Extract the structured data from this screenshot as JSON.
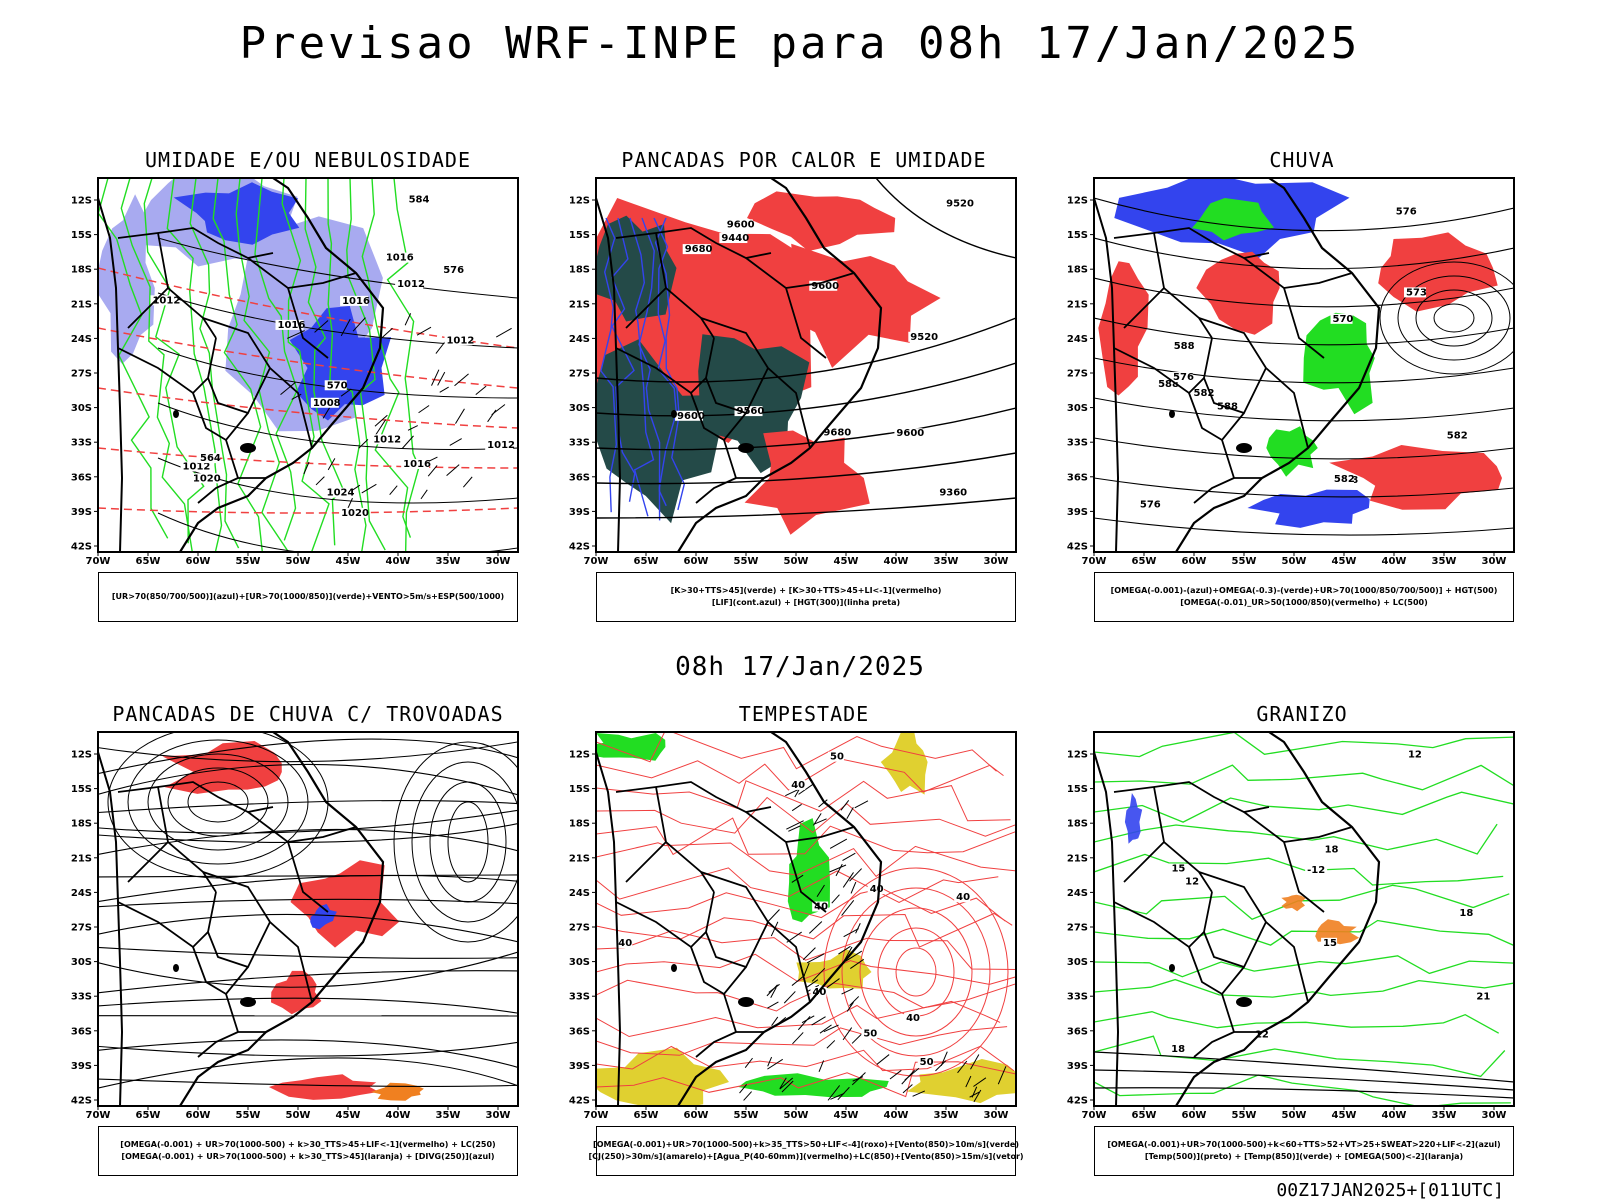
{
  "title": "Previsao WRF-INPE  para 08h 17/Jan/2025",
  "mid_time": "08h 17/Jan/2025",
  "footer": "00Z17JAN2025+[011UTC]",
  "axes": {
    "lat_labels": [
      "12S",
      "15S",
      "18S",
      "21S",
      "24S",
      "27S",
      "30S",
      "33S",
      "36S",
      "39S",
      "42S"
    ],
    "lon_labels": [
      "70W",
      "65W",
      "60W",
      "55W",
      "50W",
      "45W",
      "40W",
      "35W",
      "30W"
    ]
  },
  "colors": {
    "blue": "#3344ee",
    "light_blue": "#a8aaf0",
    "green": "#22dd22",
    "red": "#f04040",
    "dark_teal": "#244a48",
    "orange": "#f08020",
    "yellow": "#e0d030",
    "black": "#000000"
  },
  "panels": [
    {
      "title": "UMIDADE E/OU NEBULOSIDADE",
      "legend": [
        "[UR>70(850/700/500)](azul)+[UR>70(1000/850)](verde)+VENTO>5m/s+ESP(500/1000)"
      ],
      "contour_labels": [
        "1012",
        "1012",
        "1012",
        "1016",
        "1016",
        "1020",
        "1008",
        "1012",
        "1012",
        "1016",
        "1020",
        "1024",
        "1016",
        "1012",
        "570",
        "576",
        "584",
        "564"
      ]
    },
    {
      "title": "PANCADAS POR CALOR E UMIDADE",
      "legend": [
        "[K>30+TTS>45](verde) + [K>30+TTS>45+LI<-1](vermelho)",
        "[LIF](cont.azul) + [HGT(300)](linha preta)"
      ],
      "contour_labels": [
        "9600",
        "9600",
        "9680",
        "9600",
        "9560",
        "9520",
        "9600",
        "9520",
        "9440",
        "9360",
        "9680"
      ]
    },
    {
      "title": "CHUVA",
      "legend": [
        "[OMEGA(-0.001)-(azul)+OMEGA(-0.3)-(verde)+UR>70(1000/850/700/500)] + HGT(500)",
        "[OMEGA(-0.01)_UR>50(1000/850)(vermelho) + LC(500)"
      ],
      "contour_labels": [
        "588",
        "588",
        "582",
        "588",
        "588",
        "582",
        "576",
        "570",
        "576",
        "573",
        "582",
        "576"
      ]
    },
    {
      "title": "PANCADAS DE CHUVA C/ TROVOADAS",
      "legend": [
        "[OMEGA(-0.001) + UR>70(1000-500) + k>30_TTS>45+LIF<-1](vermelho) + LC(250)",
        "[OMEGA(-0.001) + UR>70(1000-500) + k>30_TTS>45](laranja) + [DIVG(250)](azul)"
      ],
      "contour_labels": []
    },
    {
      "title": "TEMPESTADE",
      "legend": [
        "[OMEGA(-0.001)+UR>70(1000-500)+k>35_TTS>50+LIF<-4](roxo)+[Vento(850)>10m/s](verde)",
        "[CJ(250)>30m/s](amarelo)+[Agua_P(40-60mm)](vermelho)+LC(850)+[Vento(850)>15m/s](vetor)"
      ],
      "contour_labels": [
        "40",
        "40",
        "50",
        "50",
        "50",
        "40",
        "40",
        "40",
        "40",
        "40"
      ]
    },
    {
      "title": "GRANIZO",
      "legend": [
        "[OMEGA(-0.001)+UR>70(1000-500)+k<60+TTS>52+VT>25+SWEAT>220+LIF<-2](azul)",
        "[Temp(500)](preto) + [Temp(850)](verde) + [OMEGA(500)<-2](laranja)"
      ],
      "contour_labels": [
        "15",
        "12",
        "18",
        "21",
        "18",
        "15",
        "12",
        "12",
        "-12",
        "18"
      ]
    }
  ]
}
